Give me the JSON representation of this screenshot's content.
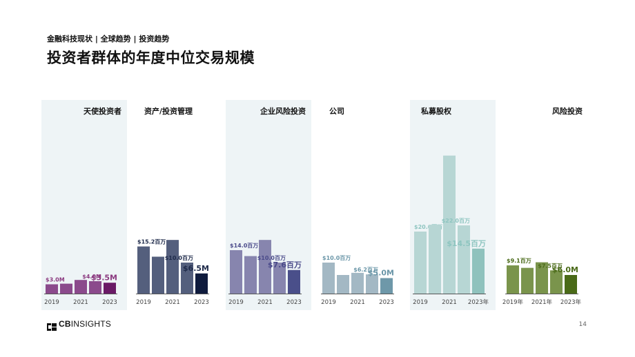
{
  "header": {
    "eyebrow": "金融科技现状 | 全球趋势 | 投资趋势",
    "title": "投资者群体的年度中位交易规模"
  },
  "footer": {
    "logo_bold": "CB",
    "logo_rest": "INSIGHTS",
    "page_number": "14"
  },
  "chart_data": [
    {
      "type": "bar",
      "title": "天使投资者",
      "categories": [
        "2019",
        "2020",
        "2021",
        "2022",
        "2023"
      ],
      "tick_labels": [
        "2019",
        "2021",
        "2023"
      ],
      "values": [
        3.0,
        3.2,
        4.4,
        4.0,
        3.5
      ],
      "labels": [
        "$3.0M",
        "",
        "",
        "$4.0M",
        "$3.5M"
      ],
      "colors": [
        "#8b4a8c",
        "#8b4a8c",
        "#8b4a8c",
        "#8b4a8c",
        "#6a1a66"
      ],
      "label_color": "#8b3a80",
      "shaded": true
    },
    {
      "type": "bar",
      "title": "资产/投资管理",
      "categories": [
        "2019",
        "2020",
        "2021",
        "2022",
        "2023"
      ],
      "tick_labels": [
        "2019",
        "2021",
        "2023"
      ],
      "values": [
        15.2,
        11.9,
        17.3,
        10.0,
        6.5
      ],
      "labels": [
        "$15.2百万",
        "",
        "",
        "$10.0百万",
        "$6.5M"
      ],
      "colors": [
        "#545f7d",
        "#545f7d",
        "#545f7d",
        "#545f7d",
        "#0f1b3d"
      ],
      "label_color": "#1e2a4a",
      "shaded": false
    },
    {
      "type": "bar",
      "title": "企业风险投资",
      "categories": [
        "2019",
        "2020",
        "2021",
        "2022",
        "2023"
      ],
      "tick_labels": [
        "2019",
        "2021",
        "2023"
      ],
      "values": [
        14.0,
        12.1,
        17.3,
        10.0,
        7.6
      ],
      "labels": [
        "$14.0百万",
        "",
        "",
        "$10.0百万",
        "$7.6百万"
      ],
      "colors": [
        "#8785ae",
        "#8785ae",
        "#8785ae",
        "#8785ae",
        "#4a4f8a"
      ],
      "label_color": "#4a4a8a",
      "shaded": true
    },
    {
      "type": "bar",
      "title": "公司",
      "categories": [
        "2019",
        "2020",
        "2021",
        "2022",
        "2023"
      ],
      "tick_labels": [
        "2019",
        "2021",
        "2023"
      ],
      "values": [
        10.0,
        6.0,
        6.7,
        6.2,
        5.0
      ],
      "labels": [
        "$10.0百万",
        "",
        "",
        "$6.2百万",
        "$5.0M"
      ],
      "colors": [
        "#a3b8c4",
        "#a3b8c4",
        "#a3b8c4",
        "#a3b8c4",
        "#6e98a9"
      ],
      "label_color": "#6a96a8",
      "shaded": false
    },
    {
      "type": "bar",
      "title": "私募股权",
      "categories": [
        "2019",
        "2020",
        "2021",
        "2022",
        "2023"
      ],
      "tick_labels": [
        "2019",
        "2021",
        "2023年"
      ],
      "values": [
        20.0,
        22.2,
        44.5,
        22.0,
        14.5
      ],
      "labels": [
        "$20.0百万",
        "",
        "",
        "$22.0百万",
        "$14.5百万"
      ],
      "colors": [
        "#b7d6d4",
        "#b7d6d4",
        "#b7d6d4",
        "#b7d6d4",
        "#8fc2bd"
      ],
      "label_color": "#8ec5c0",
      "shaded": true
    },
    {
      "type": "bar",
      "title": "风险投资",
      "categories": [
        "2019",
        "2020",
        "2021",
        "2022",
        "2023"
      ],
      "tick_labels": [
        "2019年",
        "2021年",
        "2023年"
      ],
      "values": [
        9.1,
        8.3,
        10.1,
        7.5,
        6.0
      ],
      "labels": [
        "$9.1百万",
        "",
        "",
        "$7.5百万",
        "$6.0M"
      ],
      "colors": [
        "#7a944c",
        "#7a944c",
        "#7a944c",
        "#7a944c",
        "#4a6a18"
      ],
      "label_color": "#4a6a18",
      "shaded": false
    }
  ]
}
